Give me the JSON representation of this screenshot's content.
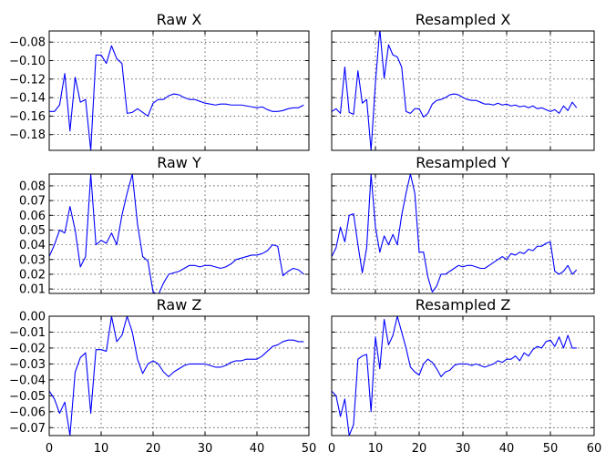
{
  "colors": {
    "line": "#0000ff"
  },
  "chart_data": [
    {
      "type": "line",
      "title": "Raw X",
      "grid": true,
      "xlim": [
        0,
        50
      ],
      "ylim": [
        -0.197,
        -0.068
      ],
      "yticks": [
        -0.08,
        -0.1,
        -0.12,
        -0.14,
        -0.16,
        -0.18
      ],
      "ytick_labels": [
        "−0.08",
        "−0.10",
        "−0.12",
        "−0.14",
        "−0.16",
        "−0.18"
      ],
      "xticks": [
        0,
        10,
        20,
        30,
        40,
        50
      ],
      "xtick_labels": [],
      "x": [
        0,
        1,
        2,
        3,
        4,
        5,
        6,
        7,
        8,
        9,
        10,
        11,
        12,
        13,
        14,
        15,
        16,
        17,
        18,
        19,
        20,
        21,
        22,
        23,
        24,
        25,
        26,
        27,
        28,
        29,
        30,
        31,
        32,
        33,
        34,
        35,
        36,
        37,
        38,
        39,
        40,
        41,
        42,
        43,
        44,
        45,
        46,
        47,
        48,
        49
      ],
      "y": [
        -0.155,
        -0.155,
        -0.148,
        -0.114,
        -0.176,
        -0.118,
        -0.145,
        -0.142,
        -0.197,
        -0.094,
        -0.094,
        -0.103,
        -0.084,
        -0.098,
        -0.103,
        -0.157,
        -0.156,
        -0.152,
        -0.156,
        -0.16,
        -0.146,
        -0.142,
        -0.142,
        -0.138,
        -0.136,
        -0.137,
        -0.14,
        -0.142,
        -0.142,
        -0.144,
        -0.146,
        -0.147,
        -0.148,
        -0.147,
        -0.147,
        -0.148,
        -0.148,
        -0.148,
        -0.149,
        -0.15,
        -0.151,
        -0.15,
        -0.153,
        -0.155,
        -0.155,
        -0.154,
        -0.152,
        -0.151,
        -0.151,
        -0.148
      ]
    },
    {
      "type": "line",
      "title": "Resampled X",
      "grid": true,
      "xlim": [
        0,
        60
      ],
      "ylim": [
        -0.197,
        -0.068
      ],
      "yticks": [
        -0.08,
        -0.1,
        -0.12,
        -0.14,
        -0.16,
        -0.18
      ],
      "ytick_labels": [],
      "xticks": [
        0,
        10,
        20,
        30,
        40,
        50,
        60
      ],
      "xtick_labels": [],
      "x": [
        0,
        1,
        2,
        3,
        4,
        5,
        6,
        7,
        8,
        9,
        10,
        11,
        12,
        13,
        14,
        15,
        16,
        17,
        18,
        19,
        20,
        21,
        22,
        23,
        24,
        25,
        26,
        27,
        28,
        29,
        30,
        31,
        32,
        33,
        34,
        35,
        36,
        37,
        38,
        39,
        40,
        41,
        42,
        43,
        44,
        45,
        46,
        47,
        48,
        49,
        50,
        51,
        52,
        53,
        54,
        55,
        56
      ],
      "y": [
        -0.155,
        -0.152,
        -0.157,
        -0.107,
        -0.156,
        -0.158,
        -0.111,
        -0.146,
        -0.142,
        -0.197,
        -0.124,
        -0.066,
        -0.119,
        -0.083,
        -0.094,
        -0.096,
        -0.107,
        -0.155,
        -0.157,
        -0.152,
        -0.152,
        -0.161,
        -0.157,
        -0.147,
        -0.143,
        -0.142,
        -0.14,
        -0.137,
        -0.136,
        -0.137,
        -0.14,
        -0.142,
        -0.143,
        -0.143,
        -0.145,
        -0.147,
        -0.147,
        -0.148,
        -0.146,
        -0.148,
        -0.147,
        -0.149,
        -0.148,
        -0.15,
        -0.149,
        -0.151,
        -0.149,
        -0.152,
        -0.151,
        -0.153,
        -0.155,
        -0.153,
        -0.157,
        -0.149,
        -0.154,
        -0.145,
        -0.151
      ]
    },
    {
      "type": "line",
      "title": "Raw Y",
      "grid": true,
      "xlim": [
        0,
        50
      ],
      "ylim": [
        0.007,
        0.088
      ],
      "yticks": [
        0.08,
        0.07,
        0.06,
        0.05,
        0.04,
        0.03,
        0.02,
        0.01
      ],
      "ytick_labels": [
        "0.08",
        "0.07",
        "0.06",
        "0.05",
        "0.04",
        "0.03",
        "0.02",
        "0.01"
      ],
      "xticks": [
        0,
        10,
        20,
        30,
        40,
        50
      ],
      "xtick_labels": [],
      "x": [
        0,
        1,
        2,
        3,
        4,
        5,
        6,
        7,
        8,
        9,
        10,
        11,
        12,
        13,
        14,
        15,
        16,
        17,
        18,
        19,
        20,
        21,
        22,
        23,
        24,
        25,
        26,
        27,
        28,
        29,
        30,
        31,
        32,
        33,
        34,
        35,
        36,
        37,
        38,
        39,
        40,
        41,
        42,
        43,
        44,
        45,
        46,
        47,
        48,
        49
      ],
      "y": [
        0.032,
        0.04,
        0.05,
        0.048,
        0.066,
        0.05,
        0.025,
        0.032,
        0.088,
        0.04,
        0.043,
        0.041,
        0.048,
        0.04,
        0.06,
        0.075,
        0.088,
        0.054,
        0.032,
        0.029,
        0.008,
        0.006,
        0.014,
        0.02,
        0.021,
        0.022,
        0.024,
        0.026,
        0.026,
        0.025,
        0.026,
        0.026,
        0.025,
        0.024,
        0.025,
        0.027,
        0.03,
        0.031,
        0.032,
        0.033,
        0.033,
        0.034,
        0.036,
        0.04,
        0.039,
        0.019,
        0.022,
        0.024,
        0.023,
        0.02
      ]
    },
    {
      "type": "line",
      "title": "Resampled Y",
      "grid": true,
      "xlim": [
        0,
        60
      ],
      "ylim": [
        0.007,
        0.088
      ],
      "yticks": [
        0.08,
        0.07,
        0.06,
        0.05,
        0.04,
        0.03,
        0.02,
        0.01
      ],
      "ytick_labels": [],
      "xticks": [
        0,
        10,
        20,
        30,
        40,
        50,
        60
      ],
      "xtick_labels": [],
      "x": [
        0,
        1,
        2,
        3,
        4,
        5,
        6,
        7,
        8,
        9,
        10,
        11,
        12,
        13,
        14,
        15,
        16,
        17,
        18,
        19,
        20,
        21,
        22,
        23,
        24,
        25,
        26,
        27,
        28,
        29,
        30,
        31,
        32,
        33,
        34,
        35,
        36,
        37,
        38,
        39,
        40,
        41,
        42,
        43,
        44,
        45,
        46,
        47,
        48,
        49,
        50,
        51,
        52,
        53,
        54,
        55,
        56
      ],
      "y": [
        0.032,
        0.038,
        0.052,
        0.042,
        0.06,
        0.061,
        0.04,
        0.021,
        0.038,
        0.088,
        0.052,
        0.035,
        0.046,
        0.04,
        0.047,
        0.04,
        0.06,
        0.075,
        0.088,
        0.075,
        0.035,
        0.035,
        0.018,
        0.008,
        0.012,
        0.02,
        0.02,
        0.022,
        0.024,
        0.026,
        0.025,
        0.026,
        0.026,
        0.025,
        0.024,
        0.024,
        0.026,
        0.028,
        0.03,
        0.032,
        0.03,
        0.034,
        0.033,
        0.035,
        0.034,
        0.037,
        0.036,
        0.039,
        0.039,
        0.041,
        0.042,
        0.022,
        0.02,
        0.022,
        0.026,
        0.02,
        0.023
      ]
    },
    {
      "type": "line",
      "title": "Raw Z",
      "grid": true,
      "xlim": [
        0,
        50
      ],
      "ylim": [
        -0.075,
        0.0
      ],
      "yticks": [
        0.0,
        -0.01,
        -0.02,
        -0.03,
        -0.04,
        -0.05,
        -0.06,
        -0.07
      ],
      "ytick_labels": [
        "0.00",
        "−0.01",
        "−0.02",
        "−0.03",
        "−0.04",
        "−0.05",
        "−0.06",
        "−0.07"
      ],
      "xticks": [
        0,
        10,
        20,
        30,
        40,
        50
      ],
      "xtick_labels": [
        "0",
        "10",
        "20",
        "30",
        "40",
        "50"
      ],
      "x": [
        0,
        1,
        2,
        3,
        4,
        5,
        6,
        7,
        8,
        9,
        10,
        11,
        12,
        13,
        14,
        15,
        16,
        17,
        18,
        19,
        20,
        21,
        22,
        23,
        24,
        25,
        26,
        27,
        28,
        29,
        30,
        31,
        32,
        33,
        34,
        35,
        36,
        37,
        38,
        39,
        40,
        41,
        42,
        43,
        44,
        45,
        46,
        47,
        48,
        49
      ],
      "y": [
        -0.047,
        -0.052,
        -0.061,
        -0.054,
        -0.075,
        -0.035,
        -0.026,
        -0.023,
        -0.061,
        -0.021,
        -0.021,
        -0.022,
        0.0,
        -0.016,
        -0.012,
        0.0,
        -0.01,
        -0.027,
        -0.036,
        -0.03,
        -0.028,
        -0.03,
        -0.035,
        -0.038,
        -0.035,
        -0.033,
        -0.031,
        -0.03,
        -0.03,
        -0.03,
        -0.03,
        -0.031,
        -0.032,
        -0.032,
        -0.031,
        -0.029,
        -0.028,
        -0.028,
        -0.027,
        -0.027,
        -0.027,
        -0.025,
        -0.022,
        -0.019,
        -0.018,
        -0.016,
        -0.015,
        -0.015,
        -0.016,
        -0.016
      ]
    },
    {
      "type": "line",
      "title": "Resampled Z",
      "grid": true,
      "xlim": [
        0,
        60
      ],
      "ylim": [
        -0.075,
        0.0
      ],
      "yticks": [
        0.0,
        -0.01,
        -0.02,
        -0.03,
        -0.04,
        -0.05,
        -0.06,
        -0.07
      ],
      "ytick_labels": [],
      "xticks": [
        0,
        10,
        20,
        30,
        40,
        50,
        60
      ],
      "xtick_labels": [
        "0",
        "10",
        "20",
        "30",
        "40",
        "50",
        "60"
      ],
      "x": [
        0,
        1,
        2,
        3,
        4,
        5,
        6,
        7,
        8,
        9,
        10,
        11,
        12,
        13,
        14,
        15,
        16,
        17,
        18,
        19,
        20,
        21,
        22,
        23,
        24,
        25,
        26,
        27,
        28,
        29,
        30,
        31,
        32,
        33,
        34,
        35,
        36,
        37,
        38,
        39,
        40,
        41,
        42,
        43,
        44,
        45,
        46,
        47,
        48,
        49,
        50,
        51,
        52,
        53,
        54,
        55,
        56
      ],
      "y": [
        -0.047,
        -0.05,
        -0.063,
        -0.052,
        -0.075,
        -0.068,
        -0.027,
        -0.025,
        -0.024,
        -0.06,
        -0.013,
        -0.033,
        -0.002,
        -0.018,
        -0.012,
        0.0,
        -0.01,
        -0.02,
        -0.032,
        -0.035,
        -0.037,
        -0.03,
        -0.027,
        -0.029,
        -0.033,
        -0.038,
        -0.035,
        -0.034,
        -0.031,
        -0.03,
        -0.03,
        -0.03,
        -0.031,
        -0.03,
        -0.031,
        -0.032,
        -0.031,
        -0.03,
        -0.028,
        -0.029,
        -0.027,
        -0.027,
        -0.025,
        -0.028,
        -0.023,
        -0.025,
        -0.021,
        -0.019,
        -0.02,
        -0.016,
        -0.015,
        -0.019,
        -0.013,
        -0.02,
        -0.012,
        -0.02,
        -0.02
      ]
    }
  ]
}
